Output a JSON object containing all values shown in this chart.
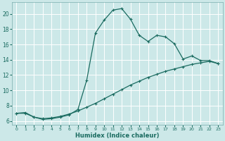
{
  "xlabel": "Humidex (Indice chaleur)",
  "background_color": "#cce8e8",
  "grid_color": "#b0d0d0",
  "line_color": "#1a6b60",
  "xlim": [
    -0.5,
    23.5
  ],
  "ylim": [
    5.5,
    21.5
  ],
  "xticks": [
    0,
    1,
    2,
    3,
    4,
    5,
    6,
    7,
    8,
    9,
    10,
    11,
    12,
    13,
    14,
    15,
    16,
    17,
    18,
    19,
    20,
    21,
    22,
    23
  ],
  "yticks": [
    6,
    8,
    10,
    12,
    14,
    16,
    18,
    20
  ],
  "curve1_x": [
    0,
    1,
    2,
    3,
    4,
    5,
    6,
    7,
    8,
    9,
    10,
    11,
    12,
    13,
    14,
    15,
    16,
    17,
    18,
    19,
    20,
    21,
    22,
    23
  ],
  "curve1_y": [
    7.0,
    7.0,
    6.5,
    6.2,
    6.3,
    6.5,
    6.8,
    7.5,
    11.3,
    17.5,
    19.2,
    20.5,
    20.7,
    19.3,
    17.2,
    16.4,
    17.2,
    17.0,
    16.1,
    14.1,
    14.5,
    13.9,
    13.9,
    13.5
  ],
  "curve2_x": [
    0,
    1,
    2,
    3,
    4,
    5,
    6,
    7,
    8,
    9,
    10,
    11,
    12,
    13,
    14,
    15,
    16,
    17,
    18,
    19,
    20,
    21,
    22,
    23
  ],
  "curve2_y": [
    7.0,
    7.1,
    6.5,
    6.3,
    6.4,
    6.6,
    6.9,
    7.3,
    7.8,
    8.3,
    8.9,
    9.5,
    10.1,
    10.7,
    11.2,
    11.7,
    12.1,
    12.5,
    12.8,
    13.1,
    13.4,
    13.6,
    13.8,
    13.5
  ]
}
